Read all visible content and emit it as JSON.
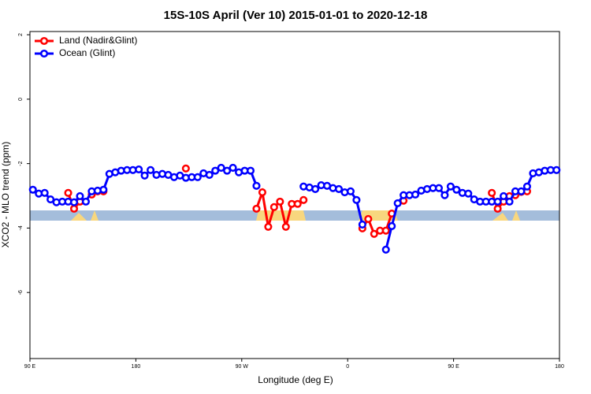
{
  "chart_data": {
    "type": "line",
    "title": "15S-10S April (Ver 10)   2015-01-01 to 2020-12-18",
    "xlabel": "Longitude (deg E)",
    "ylabel": "XCO2 - MLO trend (ppm)",
    "xlim": [
      90,
      540
    ],
    "ylim": [
      -8.05,
      2.1
    ],
    "xticks": [
      {
        "value": 90,
        "label": "90 E"
      },
      180,
      {
        "value": 270,
        "label": "90 W"
      },
      {
        "value": 360,
        "label": "0"
      },
      {
        "value": 450,
        "label": "90 E"
      },
      {
        "value": 540,
        "label": "180"
      }
    ],
    "yticks": [
      2,
      0,
      -2,
      -4,
      -6
    ],
    "legend": "top-left",
    "x": [
      92.5,
      97.5,
      102.5,
      107.5,
      112.5,
      117.5,
      122.5,
      127.5,
      132.5,
      137.5,
      142.5,
      147.5,
      152.5,
      157.5,
      162.5,
      167.5,
      172.5,
      177.5,
      182.5,
      187.5,
      192.5,
      197.5,
      202.5,
      207.5,
      212.5,
      217.5,
      222.5,
      227.5,
      232.5,
      237.5,
      242.5,
      247.5,
      252.5,
      257.5,
      262.5,
      267.5,
      272.5,
      277.5,
      282.5,
      287.5,
      292.5,
      297.5,
      302.5,
      307.5,
      312.5,
      317.5,
      322.5,
      327.5,
      332.5,
      337.5,
      342.5,
      347.5,
      352.5,
      357.5,
      362.5,
      367.5,
      372.5,
      377.5,
      382.5,
      387.5,
      392.5,
      397.5,
      402.5,
      407.5,
      412.5,
      417.5,
      422.5,
      427.5,
      432.5,
      437.5,
      442.5,
      447.5,
      452.5,
      457.5,
      462.5,
      467.5,
      472.5,
      477.5,
      482.5,
      487.5,
      492.5,
      497.5,
      502.5,
      507.5,
      512.5,
      517.5,
      522.5,
      527.5,
      532.5,
      537.5
    ],
    "series": [
      {
        "name": "Land (Nadir&Glint)",
        "color": "#ff0000",
        "values": [
          null,
          null,
          null,
          null,
          null,
          null,
          -2.91,
          -3.4,
          -3.18,
          null,
          -2.96,
          -2.86,
          -2.86,
          null,
          null,
          null,
          null,
          null,
          null,
          null,
          null,
          null,
          null,
          null,
          null,
          null,
          -2.15,
          null,
          null,
          null,
          null,
          null,
          null,
          null,
          null,
          null,
          null,
          null,
          -3.4,
          -2.89,
          -3.96,
          -3.35,
          -3.18,
          -3.96,
          -3.25,
          -3.25,
          -3.13,
          null,
          null,
          null,
          null,
          null,
          null,
          null,
          null,
          null,
          -4.01,
          -3.72,
          -4.18,
          -4.08,
          -4.08,
          -3.55,
          null,
          -3.15,
          null,
          null,
          null,
          null,
          null,
          null,
          null,
          null,
          null,
          null,
          null,
          null,
          null,
          null,
          -2.91,
          -3.4,
          -3.18,
          -3.01,
          -2.98,
          -2.88,
          -2.86,
          null,
          null,
          null,
          null,
          null
        ]
      },
      {
        "name": "Ocean (Glint)",
        "color": "#0000ff",
        "values": [
          -2.81,
          -2.93,
          -2.91,
          -3.11,
          -3.2,
          -3.18,
          -3.18,
          -3.2,
          -3.01,
          -3.18,
          -2.86,
          -2.84,
          -2.81,
          -2.32,
          -2.27,
          -2.22,
          -2.2,
          -2.2,
          -2.18,
          -2.37,
          -2.2,
          -2.35,
          -2.32,
          -2.35,
          -2.42,
          -2.37,
          -2.44,
          -2.42,
          -2.42,
          -2.3,
          -2.35,
          -2.22,
          -2.13,
          -2.22,
          -2.13,
          -2.27,
          -2.22,
          -2.22,
          -2.69,
          null,
          null,
          null,
          null,
          null,
          null,
          null,
          -2.71,
          -2.74,
          -2.79,
          -2.67,
          -2.69,
          -2.76,
          -2.79,
          -2.89,
          -2.86,
          -3.13,
          -3.89,
          null,
          null,
          null,
          -4.67,
          -3.94,
          -3.23,
          -2.98,
          -2.98,
          -2.96,
          -2.84,
          -2.79,
          -2.76,
          -2.76,
          -2.98,
          -2.71,
          -2.81,
          -2.91,
          -2.93,
          -3.11,
          -3.18,
          -3.18,
          -3.18,
          -3.18,
          -3.01,
          -3.18,
          -2.86,
          -2.86,
          -2.71,
          -2.3,
          -2.27,
          -2.22,
          -2.2,
          -2.2
        ]
      }
    ]
  }
}
